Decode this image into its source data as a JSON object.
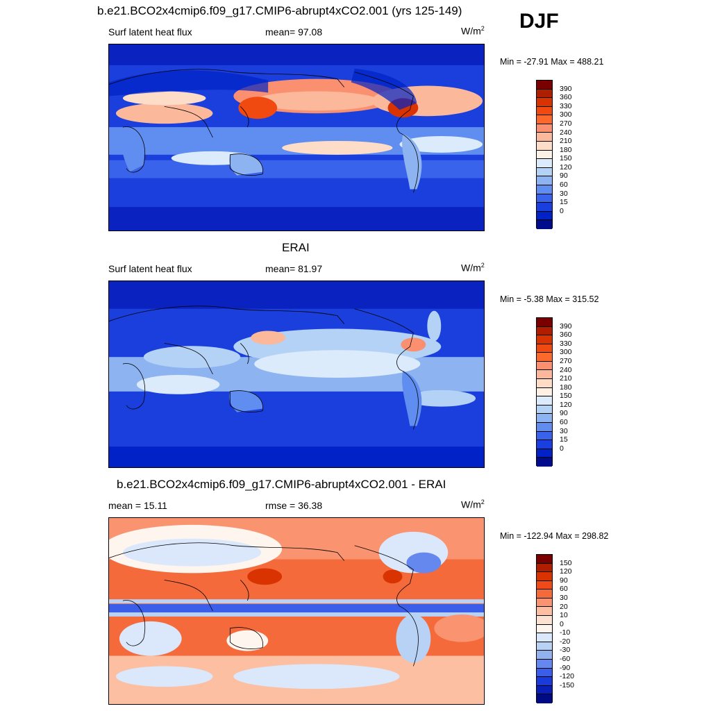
{
  "header": {
    "season": "DJF"
  },
  "panels": [
    {
      "title": "b.e21.BCO2x4cmip6.f09_g17.CMIP6-abrupt4xCO2.001 (yrs 125-149)",
      "left_label": "Surf latent heat flux",
      "mid_label": "mean=  97.08",
      "units_base": "W/m",
      "units_exp": "2",
      "minmax": "Min = -27.91 Max = 488.21",
      "colorbar": {
        "ticks": [
          "390",
          "360",
          "330",
          "300",
          "270",
          "240",
          "210",
          "180",
          "150",
          "120",
          "90",
          "60",
          "30",
          "15",
          "0"
        ],
        "colors": [
          "#7a0000",
          "#b01e00",
          "#d83300",
          "#f04a10",
          "#fb6a2c",
          "#fb9070",
          "#fcb89a",
          "#fddcc8",
          "#fdf0e4",
          "#dcebfb",
          "#b3d2f6",
          "#8db3f0",
          "#5f8ef0",
          "#3a63ec",
          "#1940df",
          "#0022c6",
          "#000c8c"
        ]
      },
      "map_style": "model"
    },
    {
      "title": "ERAI",
      "left_label": "Surf latent heat flux",
      "mid_label": "mean=  81.97",
      "units_base": "W/m",
      "units_exp": "2",
      "minmax": "Min =  -5.38 Max = 315.52",
      "colorbar": {
        "ticks": [
          "390",
          "360",
          "330",
          "300",
          "270",
          "240",
          "210",
          "180",
          "150",
          "120",
          "90",
          "60",
          "30",
          "15",
          "0"
        ],
        "colors": [
          "#7a0000",
          "#b01e00",
          "#d83300",
          "#f04a10",
          "#fb6a2c",
          "#fb9070",
          "#fcb89a",
          "#fddcc8",
          "#fdf0e4",
          "#dcebfb",
          "#b3d2f6",
          "#8db3f0",
          "#5f8ef0",
          "#3a63ec",
          "#1940df",
          "#0022c6",
          "#000c8c"
        ]
      },
      "map_style": "obs"
    },
    {
      "title": "b.e21.BCO2x4cmip6.f09_g17.CMIP6-abrupt4xCO2.001 - ERAI",
      "left_label": "mean =  15.11",
      "mid_label": "rmse =  36.38",
      "units_base": "W/m",
      "units_exp": "2",
      "minmax": "Min = -122.94 Max = 298.82",
      "colorbar": {
        "ticks": [
          "150",
          "120",
          "90",
          "60",
          "30",
          "20",
          "10",
          "0",
          "-10",
          "-20",
          "-30",
          "-60",
          "-90",
          "-120",
          "-150"
        ],
        "colors": [
          "#7a0000",
          "#b01e00",
          "#d83300",
          "#ee4a1a",
          "#f56a3a",
          "#fa9470",
          "#fcbfa2",
          "#fde2d2",
          "#fdf5ee",
          "#dbe8fb",
          "#b8d2f6",
          "#90b3f0",
          "#6488ee",
          "#3a5ee9",
          "#1a3bdc",
          "#0a1fb8",
          "#000a84"
        ]
      },
      "map_style": "diff"
    }
  ]
}
